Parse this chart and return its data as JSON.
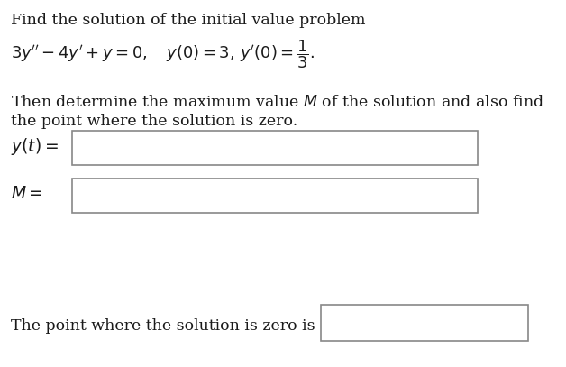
{
  "bg_color": "#ffffff",
  "text_color": "#1a1a1a",
  "line1": "Find the solution of the initial value problem",
  "line3": "Then determine the maximum value $M$ of the solution and also find",
  "line4": "the point where the solution is zero.",
  "label_yt": "$y(t) =$",
  "label_M": "$M =$",
  "label_zero": "The point where the solution is zero is",
  "font_size": 12.5,
  "font_size_math": 12.5
}
